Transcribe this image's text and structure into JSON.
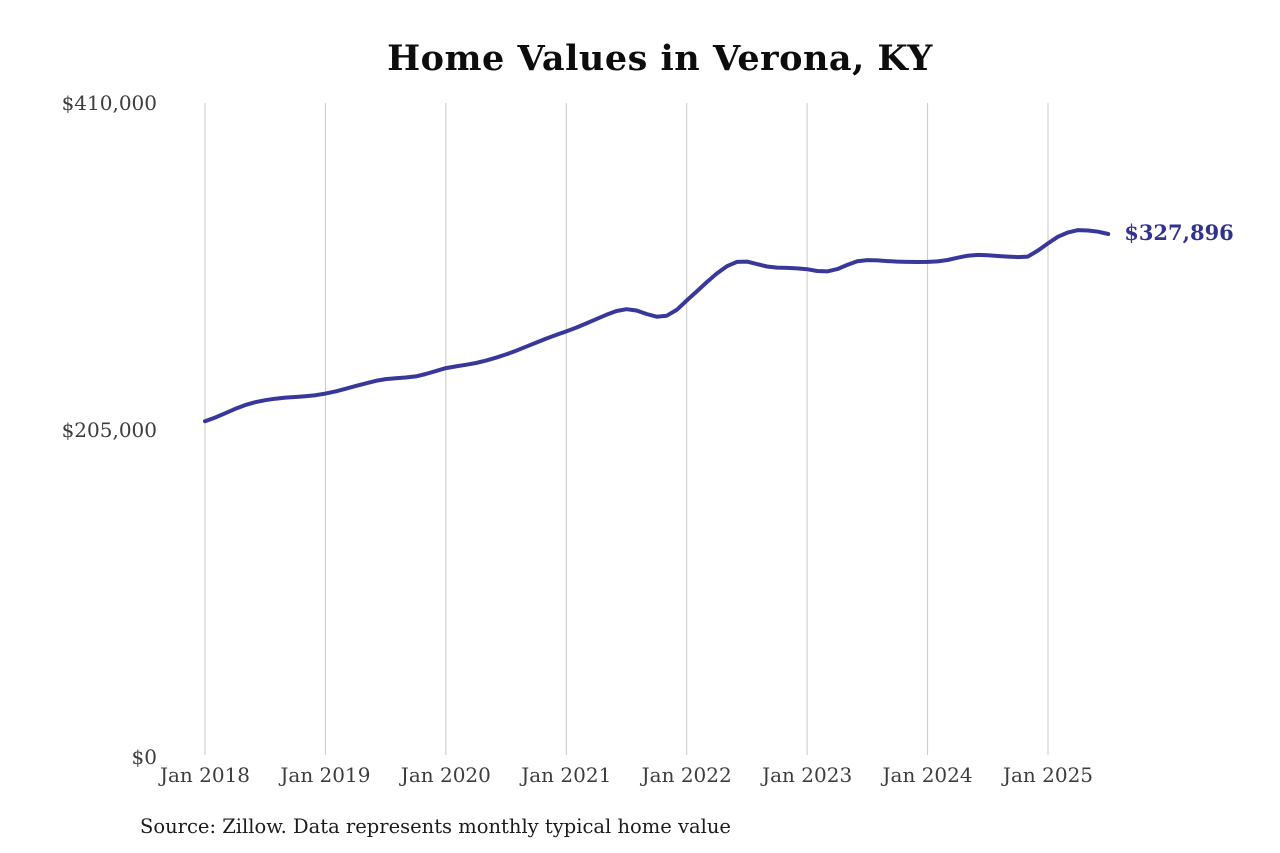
{
  "title": "Home Values in Verona, KY",
  "source_note": "Source: Zillow. Data represents monthly typical home value",
  "end_label": "$327,896",
  "colors": {
    "line": "#38389b",
    "end_label": "#32328f",
    "grid": "#c8c8c8",
    "title": "#0d0d0d",
    "axis_text": "#3d3d3d",
    "source_text": "#1c1c1c",
    "background": "#ffffff"
  },
  "chart_data": {
    "type": "line",
    "title": "Home Values in Verona, KY",
    "xlabel": "",
    "ylabel": "",
    "ylim": [
      0,
      410000
    ],
    "grid": "vertical-only",
    "legend": "none",
    "x_tick_labels": [
      "Jan 2018",
      "Jan 2019",
      "Jan 2020",
      "Jan 2021",
      "Jan 2022",
      "Jan 2023",
      "Jan 2024",
      "Jan 2025"
    ],
    "y_tick_labels": [
      "$0",
      "$205,000",
      "$410,000"
    ],
    "y_tick_values": [
      0,
      205000,
      410000
    ],
    "series": [
      {
        "name": "Monthly typical home value",
        "x": [
          "2018-01",
          "2018-02",
          "2018-03",
          "2018-04",
          "2018-05",
          "2018-06",
          "2018-07",
          "2018-08",
          "2018-09",
          "2018-10",
          "2018-11",
          "2018-12",
          "2019-01",
          "2019-02",
          "2019-03",
          "2019-04",
          "2019-05",
          "2019-06",
          "2019-07",
          "2019-08",
          "2019-09",
          "2019-10",
          "2019-11",
          "2019-12",
          "2020-01",
          "2020-02",
          "2020-03",
          "2020-04",
          "2020-05",
          "2020-06",
          "2020-07",
          "2020-08",
          "2020-09",
          "2020-10",
          "2020-11",
          "2020-12",
          "2021-01",
          "2021-02",
          "2021-03",
          "2021-04",
          "2021-05",
          "2021-06",
          "2021-07",
          "2021-08",
          "2021-09",
          "2021-10",
          "2021-11",
          "2021-12",
          "2022-01",
          "2022-02",
          "2022-03",
          "2022-04",
          "2022-05",
          "2022-06",
          "2022-07",
          "2022-08",
          "2022-09",
          "2022-10",
          "2022-11",
          "2022-12",
          "2023-01",
          "2023-02",
          "2023-03",
          "2023-04",
          "2023-05",
          "2023-06",
          "2023-07",
          "2023-08",
          "2023-09",
          "2023-10",
          "2023-11",
          "2023-12",
          "2024-01",
          "2024-02",
          "2024-03",
          "2024-04",
          "2024-05",
          "2024-06",
          "2024-07",
          "2024-08",
          "2024-09",
          "2024-10",
          "2024-11",
          "2024-12",
          "2025-01",
          "2025-02",
          "2025-03",
          "2025-04",
          "2025-05",
          "2025-06",
          "2025-07"
        ],
        "values": [
          210500,
          212800,
          215500,
          218200,
          220600,
          222400,
          223700,
          224600,
          225300,
          225700,
          226200,
          226800,
          227800,
          229200,
          230800,
          232500,
          234200,
          235800,
          236900,
          237500,
          237900,
          238600,
          240100,
          241900,
          243800,
          244900,
          245900,
          247000,
          248500,
          250300,
          252400,
          254700,
          257200,
          259800,
          262300,
          264600,
          266800,
          269200,
          271800,
          274500,
          277200,
          279600,
          280700,
          279900,
          277700,
          276000,
          276600,
          280300,
          286200,
          291900,
          297700,
          303100,
          307700,
          310400,
          310600,
          309000,
          307500,
          306800,
          306600,
          306300,
          305800,
          304700,
          304400,
          305900,
          308500,
          310800,
          311500,
          311300,
          310900,
          310600,
          310400,
          310300,
          310400,
          310700,
          311600,
          313000,
          314300,
          314800,
          314600,
          314100,
          313700,
          313400,
          313700,
          317500,
          322000,
          326200,
          328900,
          330300,
          330100,
          329300,
          327896
        ],
        "final_value": 327896,
        "final_value_label": "$327,896"
      }
    ]
  }
}
